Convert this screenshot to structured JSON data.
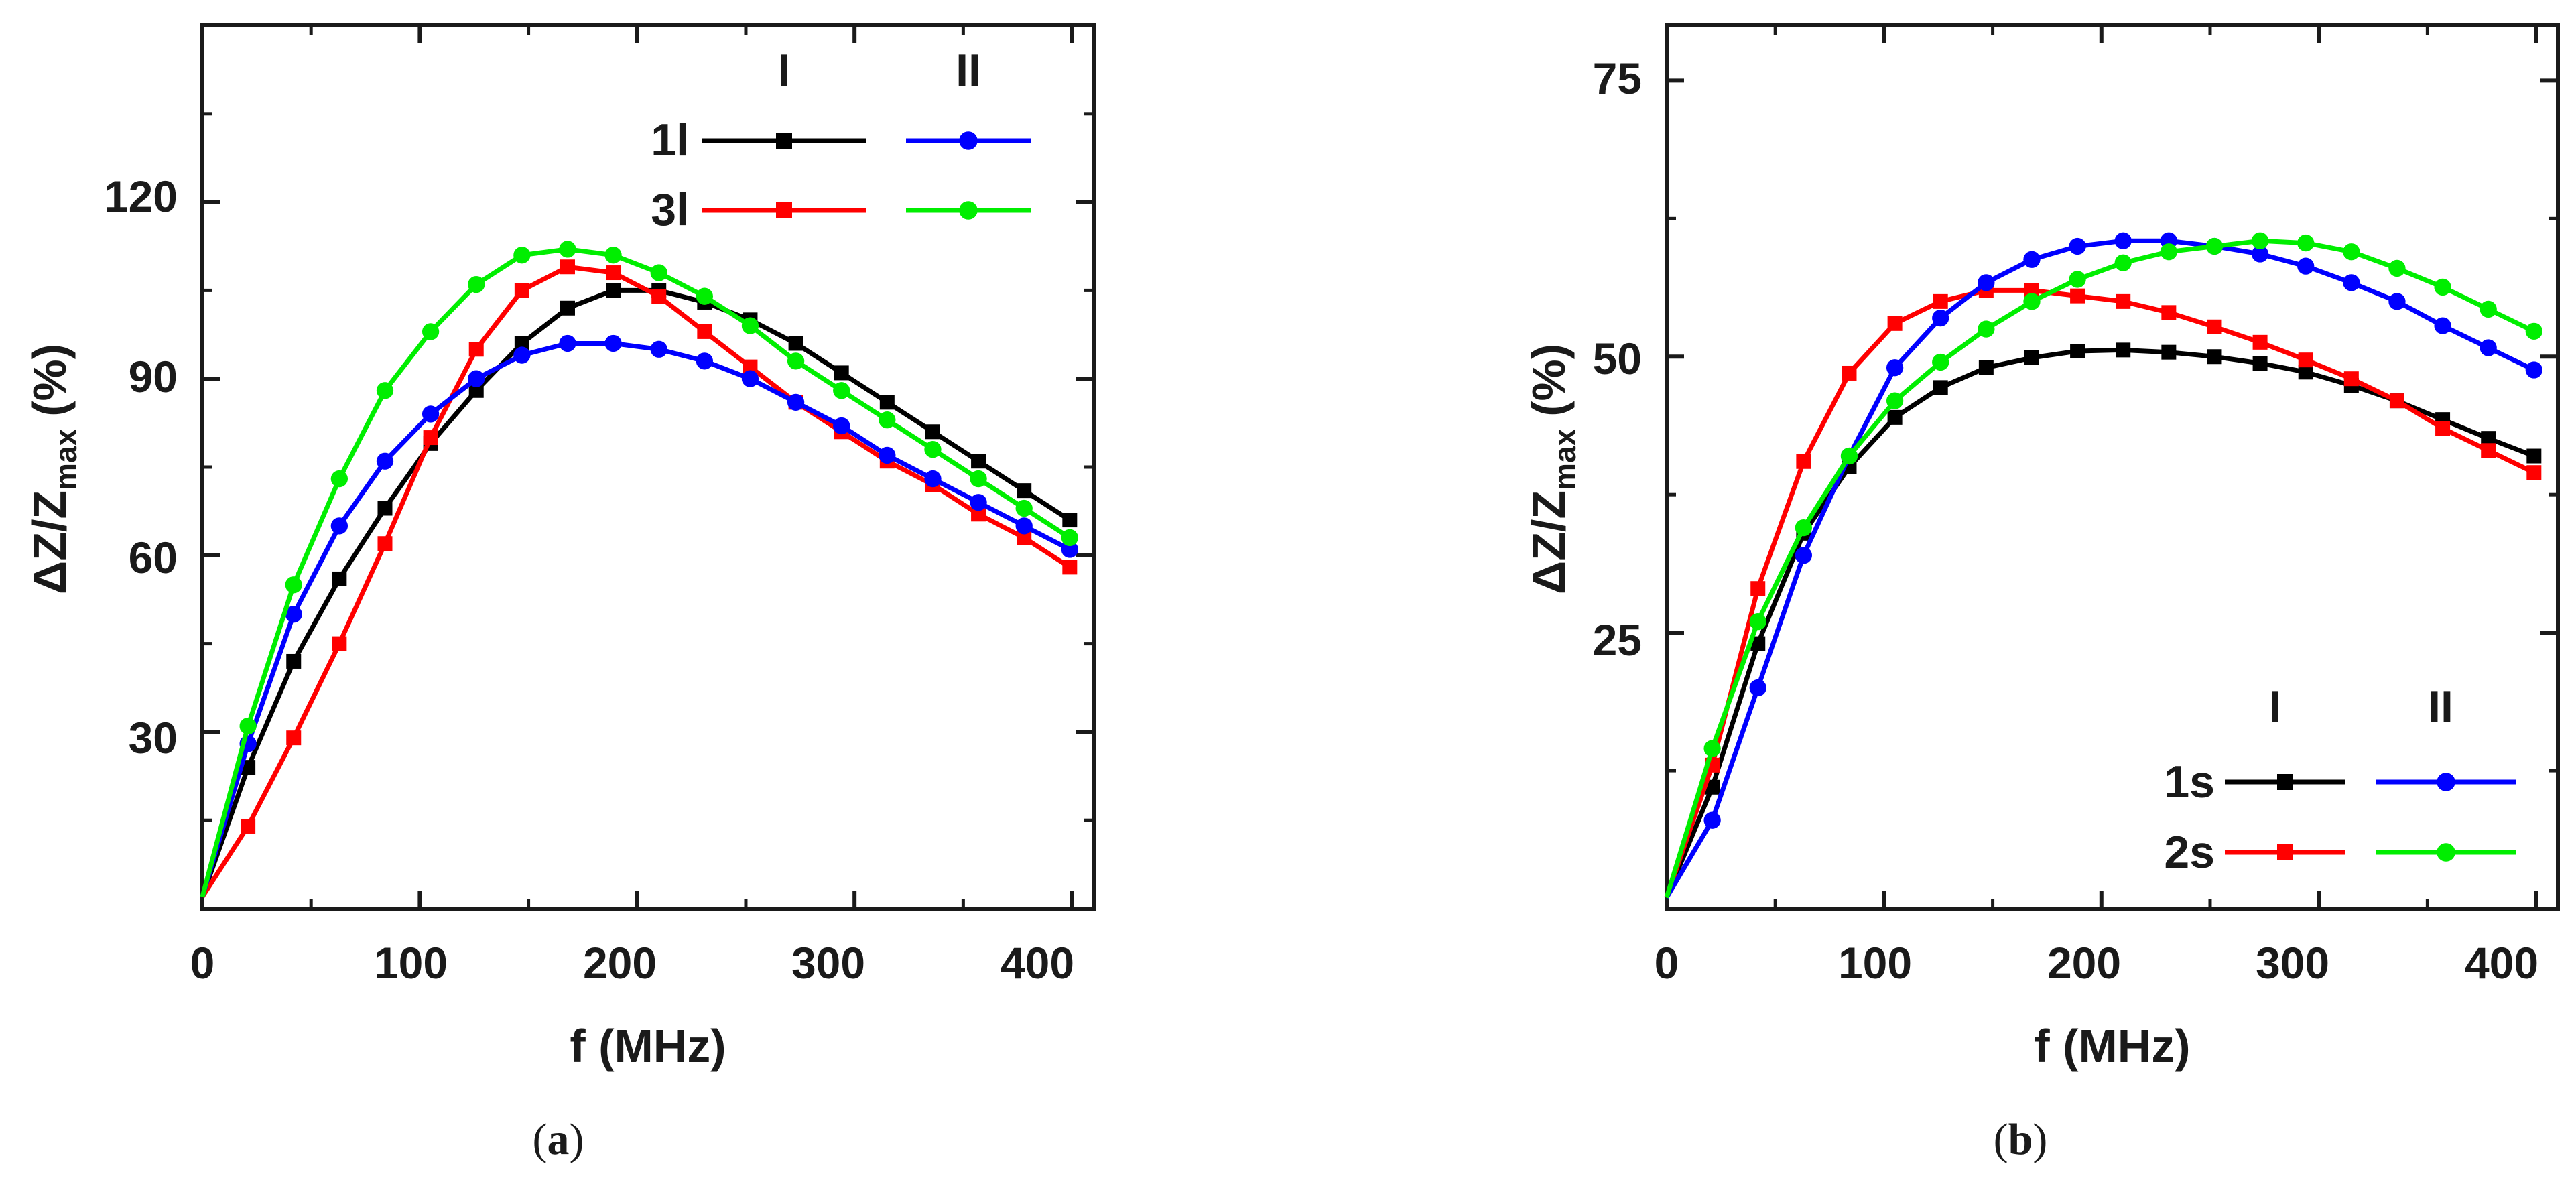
{
  "chart_data": [
    {
      "type": "line",
      "panel": "a",
      "caption_letter": "a",
      "xlabel": "f (MHz)",
      "ylabel_main": "ΔZ/Z",
      "ylabel_sub": "max",
      "ylabel_unit": "(%)",
      "xlim": [
        0,
        410
      ],
      "ylim": [
        0,
        150
      ],
      "xticks": [
        0,
        100,
        200,
        300,
        400
      ],
      "xtick_labels": [
        "0",
        "100",
        "200",
        "300",
        "400"
      ],
      "yticks": [
        30,
        60,
        90,
        120
      ],
      "ytick_labels": [
        "30",
        "60",
        "90",
        "120"
      ],
      "legend": {
        "col_headers": [
          "I",
          "II"
        ],
        "row_labels": [
          "1l",
          "3l"
        ],
        "placement": "top-right"
      },
      "x": [
        0,
        21,
        42,
        63,
        84,
        105,
        126,
        147,
        168,
        189,
        210,
        231,
        252,
        273,
        294,
        315,
        336,
        357,
        378,
        399
      ],
      "series": [
        {
          "name": "1l I",
          "color": "#000000",
          "marker": "square",
          "values": [
            2,
            24,
            42,
            56,
            68,
            79,
            88,
            96,
            102,
            105,
            105,
            103,
            100,
            96,
            91,
            86,
            81,
            76,
            71,
            66
          ]
        },
        {
          "name": "3l I",
          "color": "#ff0000",
          "marker": "square",
          "values": [
            2,
            14,
            29,
            45,
            62,
            80,
            95,
            105,
            109,
            108,
            104,
            98,
            92,
            86,
            81,
            76,
            72,
            67,
            63,
            58
          ]
        },
        {
          "name": "1l II",
          "color": "#0000ff",
          "marker": "circle",
          "values": [
            2,
            28,
            50,
            65,
            76,
            84,
            90,
            94,
            96,
            96,
            95,
            93,
            90,
            86,
            82,
            77,
            73,
            69,
            65,
            61
          ]
        },
        {
          "name": "3l II",
          "color": "#00ee00",
          "marker": "circle",
          "values": [
            2,
            31,
            55,
            73,
            88,
            98,
            106,
            111,
            112,
            111,
            108,
            104,
            99,
            93,
            88,
            83,
            78,
            73,
            68,
            63
          ]
        }
      ]
    },
    {
      "type": "line",
      "panel": "b",
      "caption_letter": "b",
      "xlabel": "f (MHz)",
      "ylabel_main": "ΔZ/Z",
      "ylabel_sub": "max",
      "ylabel_unit": "(%)",
      "xlim": [
        0,
        410
      ],
      "ylim": [
        0,
        80
      ],
      "xticks": [
        0,
        100,
        200,
        300,
        400
      ],
      "xtick_labels": [
        "0",
        "100",
        "200",
        "300",
        "400"
      ],
      "yticks": [
        25,
        50,
        75
      ],
      "ytick_labels": [
        "25",
        "50",
        "75"
      ],
      "legend": {
        "col_headers": [
          "I",
          "II"
        ],
        "row_labels": [
          "1s",
          "2s"
        ],
        "placement": "bottom-right"
      },
      "x": [
        0,
        21,
        42,
        63,
        84,
        105,
        126,
        147,
        168,
        189,
        210,
        231,
        252,
        273,
        294,
        315,
        336,
        357,
        378,
        399
      ],
      "series": [
        {
          "name": "1s I",
          "color": "#000000",
          "marker": "square",
          "values": [
            1,
            11,
            24,
            34,
            40,
            44.5,
            47.2,
            49,
            49.9,
            50.5,
            50.6,
            50.4,
            50,
            49.4,
            48.6,
            47.4,
            46,
            44.3,
            42.6,
            41
          ]
        },
        {
          "name": "2s I",
          "color": "#ff0000",
          "marker": "square",
          "values": [
            1,
            13,
            29,
            40.5,
            48.5,
            53,
            55,
            56,
            56,
            55.5,
            55,
            54,
            52.7,
            51.3,
            49.7,
            48,
            46,
            43.5,
            41.5,
            39.5
          ]
        },
        {
          "name": "1s II",
          "color": "#0000ff",
          "marker": "circle",
          "values": [
            1,
            8,
            20,
            32,
            41,
            49,
            53.5,
            56.7,
            58.8,
            60,
            60.5,
            60.5,
            60,
            59.3,
            58.2,
            56.7,
            55,
            52.8,
            50.8,
            48.8
          ]
        },
        {
          "name": "2s II",
          "color": "#00ee00",
          "marker": "circle",
          "values": [
            1,
            14.5,
            26,
            34.5,
            41,
            46,
            49.5,
            52.5,
            55,
            57,
            58.5,
            59.5,
            60,
            60.5,
            60.3,
            59.5,
            58,
            56.3,
            54.3,
            52.3
          ]
        }
      ]
    }
  ]
}
